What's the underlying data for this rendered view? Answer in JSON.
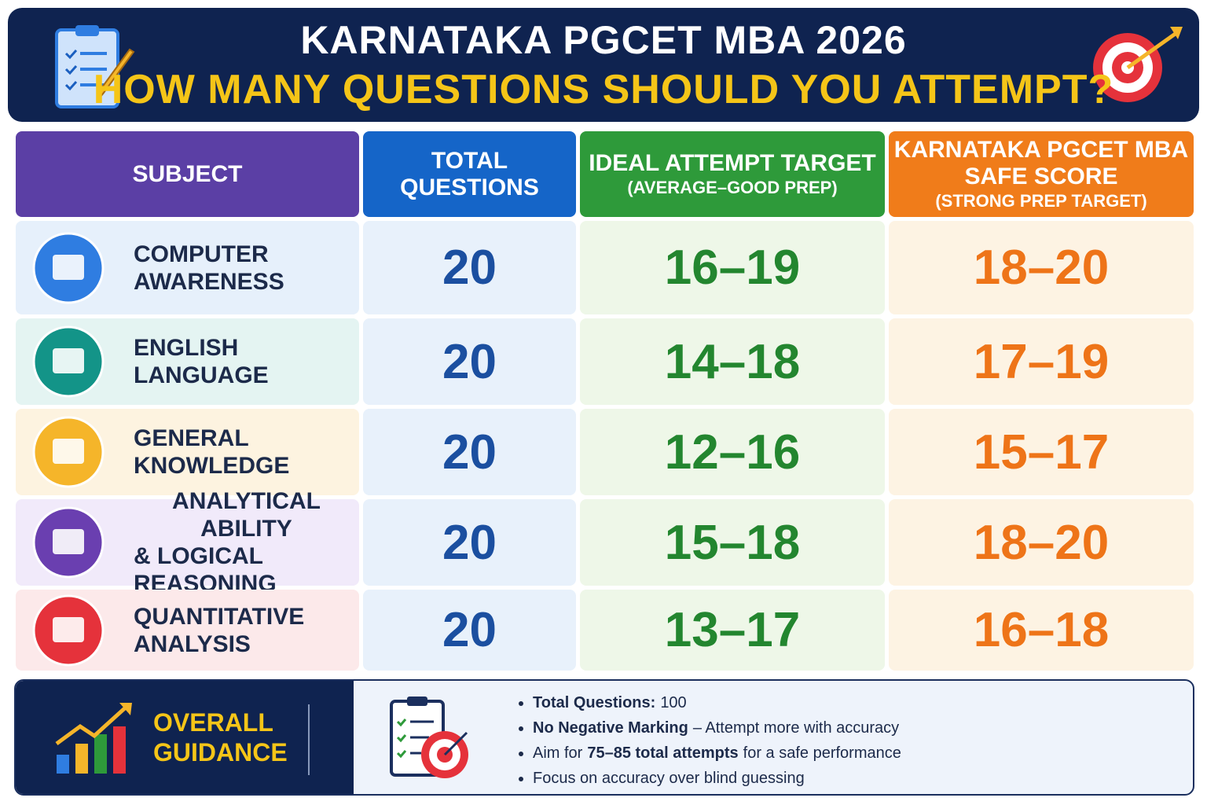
{
  "header": {
    "title": "KARNATAKA PGCET MBA 2026",
    "subtitle": "HOW MANY QUESTIONS SHOULD YOU ATTEMPT?"
  },
  "table": {
    "headers": [
      {
        "lines": [
          "SUBJECT"
        ]
      },
      {
        "lines": [
          "TOTAL QUESTIONS"
        ]
      },
      {
        "lines": [
          "IDEAL ATTEMPT TARGET"
        ],
        "note": "(AVERAGE–GOOD PREP)"
      },
      {
        "lines": [
          "KARNATAKA PGCET MBA",
          "SAFE SCORE"
        ],
        "note": "(STRONG PREP TARGET)"
      }
    ],
    "rows": [
      {
        "subject": [
          "COMPUTER",
          "AWARENESS"
        ],
        "total": 20,
        "ideal": "16–19",
        "safe": "18–20"
      },
      {
        "subject": [
          "ENGLISH",
          "LANGUAGE"
        ],
        "total": 20,
        "ideal": "14–18",
        "safe": "17–19"
      },
      {
        "subject": [
          "GENERAL",
          "KNOWLEDGE"
        ],
        "total": 20,
        "ideal": "12–16",
        "safe": "15–17"
      },
      {
        "subject": [
          "ANALYTICAL ABILITY",
          "& LOGICAL",
          "REASONING"
        ],
        "total": 20,
        "ideal": "15–18",
        "safe": "18–20"
      },
      {
        "subject": [
          "QUANTITATIVE",
          "ANALYSIS"
        ],
        "total": 20,
        "ideal": "13–17",
        "safe": "16–18"
      }
    ]
  },
  "guidance": {
    "title": [
      "OVERALL",
      "GUIDANCE"
    ],
    "bullets": [
      [
        {
          "text": "Total Questions:",
          "bold": true
        },
        {
          "text": "100",
          "bold": false
        }
      ],
      [
        {
          "text": "No Negative Marking",
          "bold": true
        },
        {
          "text": "– Attempt more with accuracy",
          "bold": false
        }
      ],
      [
        {
          "text": "Aim for",
          "bold": false
        },
        {
          "text": "75–85 total attempts",
          "bold": true
        },
        {
          "text": "for a safe performance",
          "bold": false
        }
      ],
      [
        {
          "text": "Focus on accuracy over blind guessing",
          "bold": false
        }
      ]
    ]
  }
}
